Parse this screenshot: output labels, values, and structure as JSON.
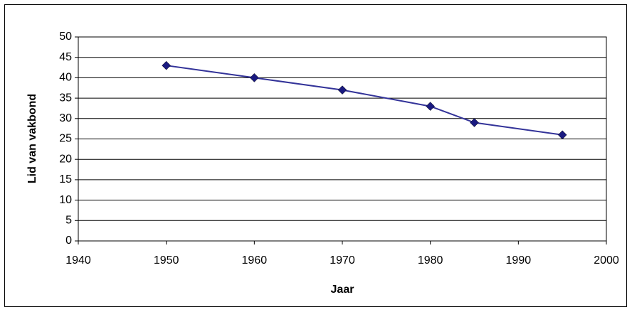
{
  "chart_data": {
    "type": "line",
    "x": [
      1950,
      1960,
      1970,
      1980,
      1985,
      1995
    ],
    "series": [
      {
        "name": "Lid van vakbond",
        "color": "#333399",
        "marker_color": "#1a1a80",
        "values": [
          43,
          40,
          37,
          33,
          29,
          26
        ]
      }
    ],
    "xlabel": "Jaar",
    "ylabel": "Lid van vakbond",
    "xlim": [
      1940,
      2000
    ],
    "xticks": [
      1940,
      1950,
      1960,
      1970,
      1980,
      1990,
      2000
    ],
    "ylim": [
      0,
      50
    ],
    "yticks": [
      0,
      5,
      10,
      15,
      20,
      25,
      30,
      35,
      40,
      45,
      50
    ],
    "grid": true
  }
}
